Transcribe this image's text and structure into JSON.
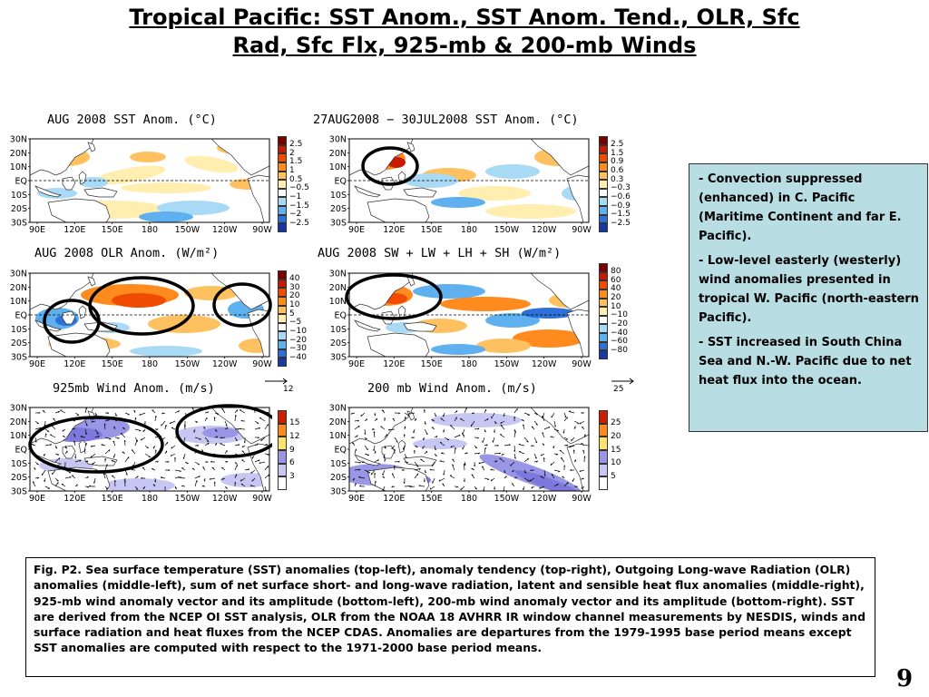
{
  "title_line1": "Tropical Pacific: SST Anom., SST Anom. Tend., OLR, Sfc",
  "title_line2": "Rad, Sfc Flx, 925-mb & 200-mb Winds",
  "axes": {
    "lat_labels": [
      "30N",
      "20N",
      "10N",
      "EQ",
      "10S",
      "20S",
      "30S"
    ],
    "lon_labels": [
      "90E",
      "120E",
      "150E",
      "180",
      "150W",
      "120W",
      "90W"
    ]
  },
  "panels": [
    {
      "id": "sst",
      "title": "AUG 2008 SST Anom. (°C)",
      "legend_labels": [
        "2.5",
        "2",
        "1.5",
        "1",
        "0.5",
        "−0.5",
        "−1",
        "−1.5",
        "−2",
        "−2.5"
      ],
      "legend_colors": [
        "#7a0000",
        "#c81a00",
        "#f04b00",
        "#ff8a1e",
        "#ffc060",
        "#ffeeb0",
        "#ffffff",
        "#a8daf5",
        "#5fb0ef",
        "#2c70d8",
        "#1838a8"
      ]
    },
    {
      "id": "tend",
      "title": "27AUG2008 − 30JUL2008 SST Anom. (°C)",
      "legend_labels": [
        "2.5",
        "1.5",
        "0.9",
        "0.6",
        "0.3",
        "−0.3",
        "−0.6",
        "−0.9",
        "−1.5",
        "−2.5"
      ],
      "legend_colors": [
        "#7a0000",
        "#c81a00",
        "#f04b00",
        "#ff8a1e",
        "#ffc060",
        "#ffeeb0",
        "#ffffff",
        "#a8daf5",
        "#5fb0ef",
        "#2c70d8",
        "#1838a8"
      ]
    },
    {
      "id": "olr",
      "title": "AUG 2008 OLR Anom. (W/m²)",
      "legend_labels": [
        "40",
        "30",
        "20",
        "10",
        "5",
        "−5",
        "−10",
        "−20",
        "−30",
        "−40"
      ],
      "legend_colors": [
        "#7a0000",
        "#c81a00",
        "#f04b00",
        "#ff8a1e",
        "#ffc060",
        "#ffeeb0",
        "#ffffff",
        "#a8daf5",
        "#5fb0ef",
        "#2c70d8",
        "#1838a8"
      ]
    },
    {
      "id": "flux",
      "title": "AUG 2008 SW + LW + LH + SH (W/m²)",
      "legend_labels": [
        "80",
        "60",
        "40",
        "20",
        "10",
        "−10",
        "−20",
        "−40",
        "−60",
        "−80"
      ],
      "legend_colors": [
        "#7a0000",
        "#c81a00",
        "#f04b00",
        "#ff8a1e",
        "#ffc060",
        "#ffeeb0",
        "#ffffff",
        "#a8daf5",
        "#5fb0ef",
        "#2c70d8",
        "#1838a8"
      ]
    },
    {
      "id": "w925",
      "title": "925mb Wind Anom. (m/s)",
      "ref_vector": "12",
      "legend_labels": [
        "15",
        "12",
        "9",
        "6",
        "3"
      ],
      "legend_colors": [
        "#d01c00",
        "#ff8a1e",
        "#ffe36a",
        "#9a96e6",
        "#c8c6f2",
        "#ffffff"
      ]
    },
    {
      "id": "w200",
      "title": "200 mb Wind Anom. (m/s)",
      "ref_vector": "25",
      "legend_labels": [
        "25",
        "20",
        "15",
        "10",
        "5"
      ],
      "legend_colors": [
        "#d01c00",
        "#ff8a1e",
        "#ffe36a",
        "#9a96e6",
        "#c8c6f2",
        "#ffffff"
      ]
    }
  ],
  "notes": [
    "Convection suppressed (enhanced) in C. Pacific (Maritime Continent and far E. Pacific).",
    "Low-level easterly (westerly) wind anomalies presented in tropical W. Pacific (north-eastern Pacific).",
    "SST increased in South China Sea and N.-W. Pacific due to net heat flux into the ocean."
  ],
  "caption": "Fig. P2. Sea surface temperature (SST) anomalies (top-left), anomaly tendency (top-right), Outgoing Long-wave Radiation (OLR) anomalies (middle-left), sum of net surface short- and long-wave radiation, latent and sensible heat flux anomalies (middle-right), 925-mb wind anomaly vector and its amplitude (bottom-left), 200-mb wind anomaly vector and its amplitude  (bottom-right). SST are derived from the NCEP OI SST analysis, OLR from the NOAA 18 AVHRR IR window channel measurements by NESDIS, winds and surface radiation and heat fluxes from the NCEP CDAS. Anomalies are  departures from the 1979-1995 base period means except SST anomalies are computed with respect to the 1971-2000 base period means.",
  "page_number": "9"
}
